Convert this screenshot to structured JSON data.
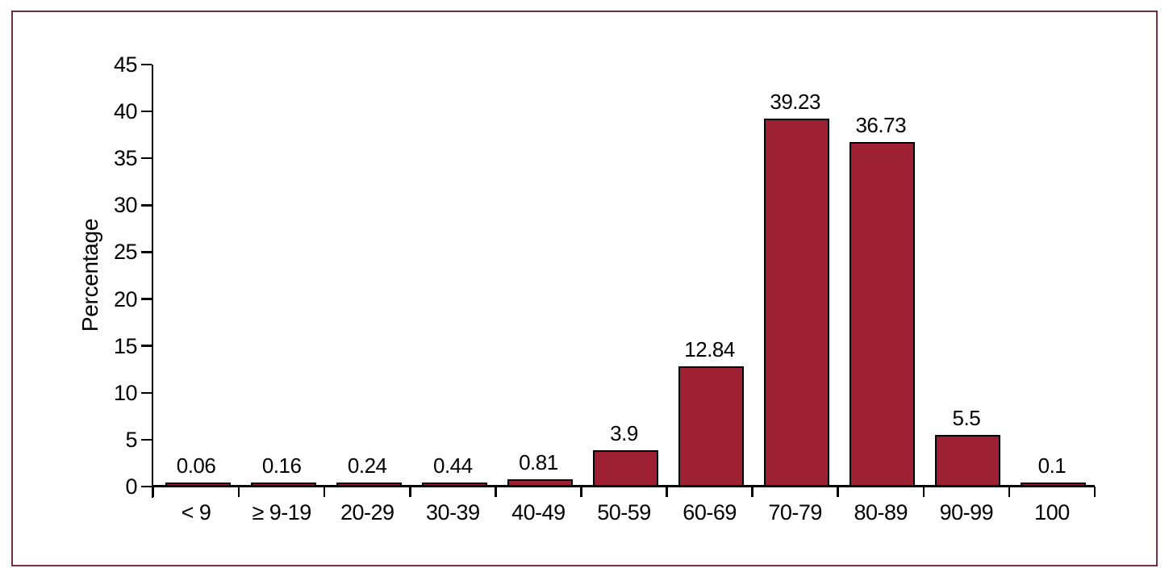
{
  "frame": {
    "border_color": "#74303f"
  },
  "chart_data": {
    "type": "bar",
    "title": "",
    "categories": [
      "< 9",
      "≥ 9-19",
      "20-29",
      "30-39",
      "40-49",
      "50-59",
      "60-69",
      "70-79",
      "80-89",
      "90-99",
      "100"
    ],
    "values": [
      0.06,
      0.16,
      0.24,
      0.44,
      0.81,
      3.9,
      12.84,
      39.23,
      36.73,
      5.5,
      0.1
    ],
    "value_labels": [
      "0.06",
      "0.16",
      "0.24",
      "0.44",
      "0.81",
      "3.9",
      "12.84",
      "39.23",
      "36.73",
      "5.5",
      "0.1"
    ],
    "xlabel": "",
    "ylabel": "Percentage",
    "ylim": [
      0,
      45
    ],
    "yticks": [
      0,
      5,
      10,
      15,
      20,
      25,
      30,
      35,
      40,
      45
    ],
    "grid": false,
    "legend": "none",
    "bar_color": "#9e2033",
    "bar_border_color": "#000000",
    "axis_color": "#000000",
    "text_color": "#000000"
  }
}
